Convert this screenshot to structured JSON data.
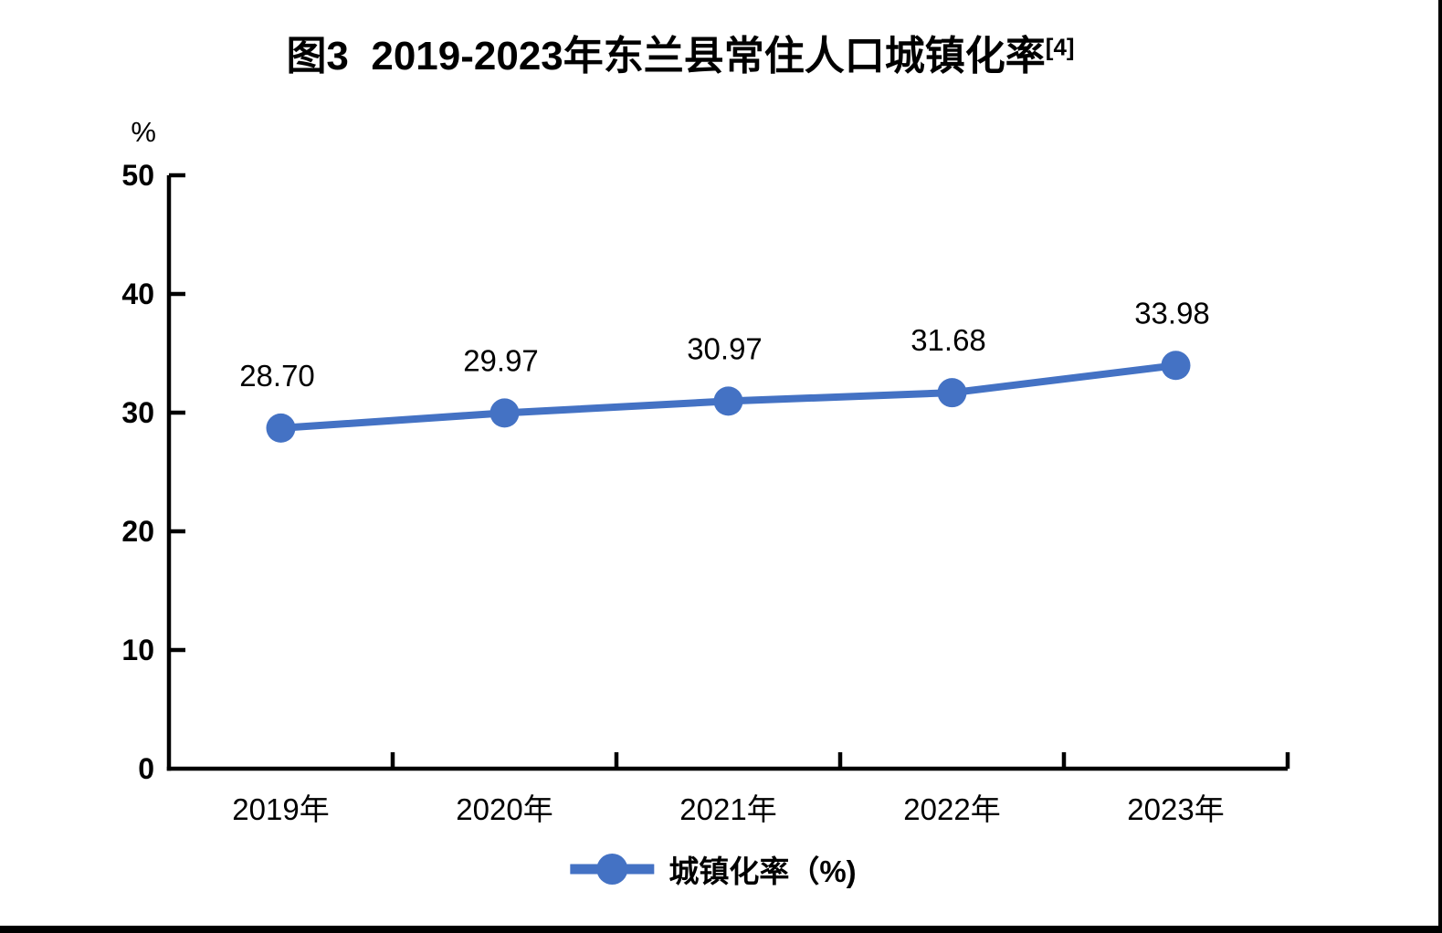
{
  "title": {
    "text": "图3  2019-2023年东兰县常住人口城镇化率",
    "superscript": "[4]"
  },
  "chart_data": {
    "type": "line",
    "title": "图3 2019-2023年东兰县常住人口城镇化率[4]",
    "xlabel": "",
    "ylabel": "%",
    "unit_label": "%",
    "categories": [
      "2019年",
      "2020年",
      "2021年",
      "2022年",
      "2023年"
    ],
    "series": [
      {
        "name": "城镇化率（%)",
        "color": "#4472C4",
        "values": [
          28.7,
          29.97,
          30.97,
          31.68,
          33.98
        ],
        "data_labels": [
          "28.70",
          "29.97",
          "30.97",
          "31.68",
          "33.98"
        ]
      }
    ],
    "ylim": [
      0,
      50
    ],
    "yticks": [
      0,
      10,
      20,
      30,
      40,
      50
    ],
    "grid": false,
    "legend_position": "bottom",
    "axis_color": "#000000",
    "label_color": "#000000"
  },
  "legend": {
    "label": "城镇化率（%)",
    "color": "#4472C4"
  }
}
